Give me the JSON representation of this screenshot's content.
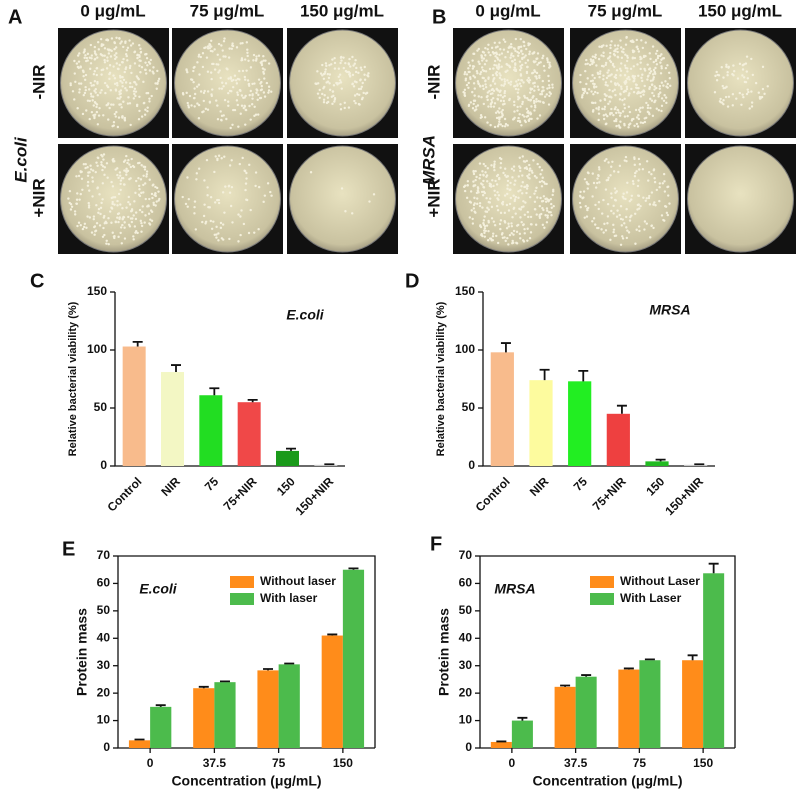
{
  "panel_labels": [
    "A",
    "B",
    "C",
    "D",
    "E",
    "F"
  ],
  "plates": [
    {
      "organism": "E.coli",
      "columns": [
        "0 μg/mL",
        "75 μg/mL",
        "150 μg/mL"
      ],
      "rows": [
        "-NIR",
        "+NIR"
      ]
    },
    {
      "organism": "MRSA",
      "columns": [
        "0 μg/mL",
        "75 μg/mL",
        "150 μg/mL"
      ],
      "rows": [
        "-NIR",
        "+NIR"
      ]
    }
  ],
  "chart_data": [
    {
      "type": "bar",
      "ylabel": "Relative bacterial viability (%)",
      "annotation": "E.coli",
      "categories": [
        "Control",
        "NIR",
        "75",
        "75+NIR",
        "150",
        "150+NIR"
      ],
      "values": [
        103,
        81,
        61,
        55,
        13,
        1
      ],
      "errors": [
        4,
        6,
        6,
        2,
        2,
        0.5
      ],
      "colors": [
        "#f8bb8c",
        "#f3f7c4",
        "#22dd22",
        "#f04848",
        "#1a9a1a",
        "#c8c8c8"
      ],
      "ylim": [
        0,
        150
      ],
      "yticks": [
        0,
        50,
        100,
        150
      ]
    },
    {
      "type": "bar",
      "ylabel": "Relative bacterial viability (%)",
      "annotation": "MRSA",
      "categories": [
        "Control",
        "NIR",
        "75",
        "75+NIR",
        "150",
        "150+NIR"
      ],
      "values": [
        98,
        74,
        73,
        45,
        4,
        1
      ],
      "errors": [
        8,
        9,
        9,
        7,
        1.5,
        0.5
      ],
      "colors": [
        "#f8bb8c",
        "#fdfb9e",
        "#22ee22",
        "#ee4040",
        "#22bb22",
        "#c8c8c8"
      ],
      "ylim": [
        0,
        150
      ],
      "yticks": [
        0,
        50,
        100,
        150
      ]
    },
    {
      "type": "grouped-bar",
      "ylabel": "Protein mass",
      "xlabel": "Concentration (μg/mL)",
      "annotation": "E.coli",
      "categories": [
        "0",
        "37.5",
        "75",
        "150"
      ],
      "series": [
        {
          "name": "Without laser",
          "color": "#ff8c1a",
          "values": [
            2.8,
            21.8,
            28.3,
            41
          ],
          "errors": [
            0.3,
            0.5,
            0.5,
            0.4
          ]
        },
        {
          "name": "With laser",
          "color": "#4cbb4c",
          "values": [
            15,
            24,
            30.5,
            65
          ],
          "errors": [
            0.6,
            0.3,
            0.3,
            0.5
          ]
        }
      ],
      "ylim": [
        0,
        70
      ],
      "yticks": [
        0,
        10,
        20,
        30,
        40,
        50,
        60,
        70
      ]
    },
    {
      "type": "grouped-bar",
      "ylabel": "Protein mass",
      "xlabel": "Concentration (μg/mL)",
      "annotation": "MRSA",
      "categories": [
        "0",
        "37.5",
        "75",
        "150"
      ],
      "series": [
        {
          "name": "Without Laser",
          "color": "#ff8c1a",
          "values": [
            2.2,
            22.3,
            28.6,
            32
          ],
          "errors": [
            0.2,
            0.5,
            0.4,
            1.8
          ]
        },
        {
          "name": "With Laser",
          "color": "#4cbb4c",
          "values": [
            10,
            26,
            32,
            63.7
          ],
          "errors": [
            1,
            0.6,
            0.3,
            3.5
          ]
        }
      ],
      "ylim": [
        0,
        70
      ],
      "yticks": [
        0,
        10,
        20,
        30,
        40,
        50,
        60,
        70
      ]
    }
  ]
}
